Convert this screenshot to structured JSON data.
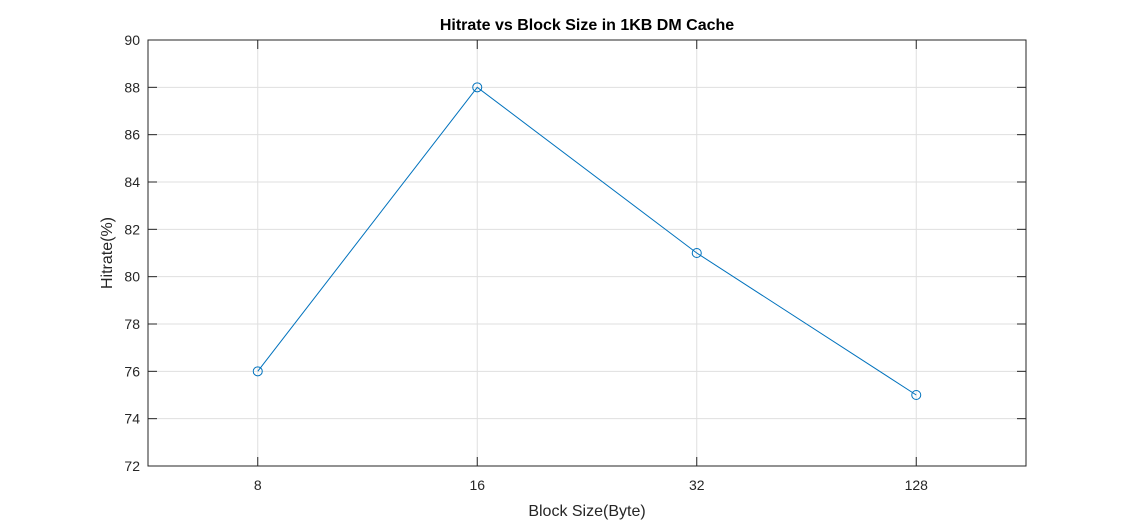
{
  "chart_data": {
    "type": "line",
    "title": "Hitrate vs Block Size in 1KB DM Cache",
    "xlabel": "Block Size(Byte)",
    "ylabel": "Hitrate(%)",
    "categories": [
      "8",
      "16",
      "32",
      "128"
    ],
    "x_range": [
      0.5,
      4.5
    ],
    "ylim": [
      72,
      90
    ],
    "yticks": [
      72,
      74,
      76,
      78,
      80,
      82,
      84,
      86,
      88,
      90
    ],
    "grid": true,
    "series": [
      {
        "values": [
          76,
          88,
          81,
          75
        ],
        "color": "#0072bd",
        "marker": "circle"
      }
    ]
  }
}
